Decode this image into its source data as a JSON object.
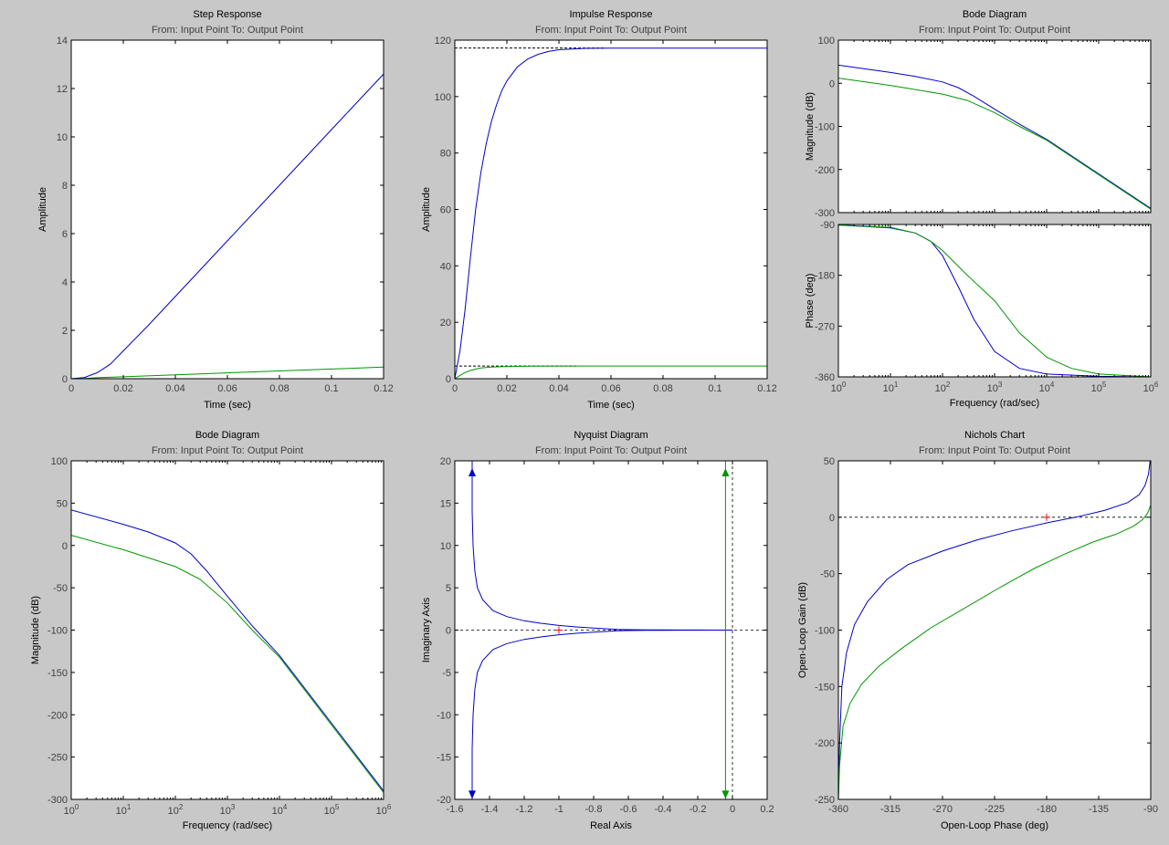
{
  "colors": {
    "background": "#c8c8c8",
    "axes_background": "#ffffff",
    "axes_frame": "#000000",
    "tick_label": "#404040",
    "series_blue": "#0000c8",
    "series_green": "#009600",
    "reference_line": "#000000",
    "critical_point": "#ff0000"
  },
  "chart_data": [
    {
      "id": "step",
      "type": "line",
      "title": "Step Response",
      "subtitle": "From: Input Point  To: Output Point",
      "xlabel": "Time (sec)",
      "ylabel": "Amplitude",
      "xlim": [
        0,
        0.12
      ],
      "ylim": [
        0,
        14
      ],
      "xticks": [
        0,
        0.02,
        0.04,
        0.06,
        0.08,
        0.1,
        0.12
      ],
      "xtick_labels": [
        "0",
        "0.02",
        "0.04",
        "0.06",
        "0.08",
        "0.1",
        "0.12"
      ],
      "yticks": [
        0,
        2,
        4,
        6,
        8,
        10,
        12,
        14
      ],
      "ytick_labels": [
        "0",
        "2",
        "4",
        "6",
        "8",
        "10",
        "12",
        "14"
      ],
      "series": [
        {
          "color": "blue",
          "x": [
            0,
            0.005,
            0.01,
            0.015,
            0.02,
            0.03,
            0.04,
            0.06,
            0.08,
            0.1,
            0.12
          ],
          "y": [
            0,
            0.05,
            0.25,
            0.6,
            1.15,
            2.25,
            3.4,
            5.7,
            8.0,
            10.3,
            12.6
          ]
        },
        {
          "color": "green",
          "x": [
            0,
            0.005,
            0.01,
            0.02,
            0.04,
            0.06,
            0.08,
            0.1,
            0.12
          ],
          "y": [
            0,
            0.01,
            0.04,
            0.08,
            0.16,
            0.24,
            0.32,
            0.4,
            0.48
          ]
        }
      ]
    },
    {
      "id": "impulse",
      "type": "line",
      "title": "Impulse Response",
      "subtitle": "From: Input Point  To: Output Point",
      "xlabel": "Time (sec)",
      "ylabel": "Amplitude",
      "xlim": [
        0,
        0.12
      ],
      "ylim": [
        0,
        120
      ],
      "xticks": [
        0,
        0.02,
        0.04,
        0.06,
        0.08,
        0.1,
        0.12
      ],
      "xtick_labels": [
        "0",
        "0.02",
        "0.04",
        "0.06",
        "0.08",
        "0.1",
        "0.12"
      ],
      "yticks": [
        0,
        20,
        40,
        60,
        80,
        100,
        120
      ],
      "ytick_labels": [
        "0",
        "20",
        "40",
        "60",
        "80",
        "100",
        "120"
      ],
      "series": [
        {
          "color": "blue",
          "x": [
            0,
            0.002,
            0.004,
            0.006,
            0.008,
            0.01,
            0.012,
            0.014,
            0.016,
            0.018,
            0.02,
            0.024,
            0.028,
            0.032,
            0.036,
            0.04,
            0.05,
            0.06,
            0.08,
            0.1,
            0.12
          ],
          "y": [
            0,
            10,
            25,
            43,
            60,
            73,
            83,
            91,
            97,
            102,
            105.5,
            110.5,
            113.3,
            115,
            116,
            116.6,
            117.1,
            117.2,
            117.2,
            117.2,
            117.2
          ]
        },
        {
          "color": "green",
          "x": [
            0,
            0.002,
            0.004,
            0.006,
            0.008,
            0.01,
            0.014,
            0.02,
            0.03,
            0.04,
            0.06,
            0.12
          ],
          "y": [
            0,
            1.2,
            2.2,
            2.9,
            3.4,
            3.8,
            4.15,
            4.35,
            4.45,
            4.48,
            4.5,
            4.5
          ]
        }
      ],
      "reference_lines": [
        {
          "y": 117.2,
          "x_end": 0.058
        },
        {
          "y": 4.5,
          "x_end": 0.047
        }
      ]
    },
    {
      "id": "bode_top_mag",
      "type": "line",
      "title": "Bode Diagram",
      "subtitle": "From: Input Point  To: Output Point",
      "ylabel": "Magnitude (dB)",
      "xscale": "log",
      "xlim": [
        1,
        1000000
      ],
      "ylim": [
        -300,
        100
      ],
      "yticks": [
        -300,
        -200,
        -100,
        0,
        100
      ],
      "ytick_labels": [
        "-300",
        "-200",
        "-100",
        "0",
        "100"
      ],
      "series": [
        {
          "color": "blue",
          "x": [
            1,
            10,
            30,
            100,
            200,
            400,
            1000,
            3000,
            10000,
            100000,
            1000000
          ],
          "y": [
            42,
            25,
            16,
            3,
            -10,
            -30,
            -60,
            -95,
            -130,
            -210,
            -290
          ]
        },
        {
          "color": "green",
          "x": [
            1,
            10,
            100,
            300,
            1000,
            3000,
            10000,
            100000,
            1000000
          ],
          "y": [
            12,
            -5,
            -25,
            -40,
            -68,
            -100,
            -132,
            -212,
            -292
          ]
        }
      ]
    },
    {
      "id": "bode_top_phase",
      "type": "line",
      "ylabel": "Phase (deg)",
      "xlabel": "Frequency  (rad/sec)",
      "xscale": "log",
      "xlim": [
        1,
        1000000
      ],
      "ylim": [
        -360,
        -90
      ],
      "xticks": [
        1,
        10,
        100,
        1000,
        10000,
        100000,
        1000000
      ],
      "xtick_labels": [
        "10^0",
        "10^1",
        "10^2",
        "10^3",
        "10^4",
        "10^5",
        "10^6"
      ],
      "yticks": [
        -360,
        -270,
        -180,
        -90
      ],
      "ytick_labels": [
        "-360",
        "-270",
        "-180",
        "-90"
      ],
      "series": [
        {
          "color": "blue",
          "x": [
            1,
            10,
            30,
            60,
            100,
            200,
            400,
            1000,
            3000,
            10000,
            100000,
            1000000
          ],
          "y": [
            -91,
            -96,
            -105,
            -120,
            -145,
            -200,
            -258,
            -315,
            -345,
            -355,
            -359,
            -360
          ]
        },
        {
          "color": "green",
          "x": [
            1,
            10,
            30,
            60,
            100,
            300,
            1000,
            3000,
            10000,
            30000,
            100000,
            1000000
          ],
          "y": [
            -91,
            -95,
            -105,
            -120,
            -136,
            -180,
            -225,
            -282,
            -325,
            -345,
            -355,
            -360
          ]
        }
      ]
    },
    {
      "id": "bode_bottom",
      "type": "line",
      "title": "Bode Diagram",
      "subtitle": "From: Input Point  To: Output Point",
      "xlabel": "Frequency  (rad/sec)",
      "ylabel": "Magnitude (dB)",
      "xscale": "log",
      "xlim": [
        1,
        1000000
      ],
      "ylim": [
        -300,
        100
      ],
      "xticks": [
        1,
        10,
        100,
        1000,
        10000,
        100000,
        1000000
      ],
      "xtick_labels": [
        "10^0",
        "10^1",
        "10^2",
        "10^3",
        "10^4",
        "10^5",
        "10^6"
      ],
      "yticks": [
        -300,
        -250,
        -200,
        -150,
        -100,
        -50,
        0,
        50,
        100
      ],
      "ytick_labels": [
        "-300",
        "-250",
        "-200",
        "-150",
        "-100",
        "-50",
        "0",
        "50",
        "100"
      ],
      "series": [
        {
          "color": "blue",
          "x": [
            1,
            10,
            30,
            100,
            200,
            400,
            1000,
            3000,
            10000,
            100000,
            1000000
          ],
          "y": [
            42,
            25,
            16,
            3,
            -10,
            -30,
            -60,
            -95,
            -130,
            -210,
            -290
          ]
        },
        {
          "color": "green",
          "x": [
            1,
            10,
            100,
            300,
            1000,
            3000,
            10000,
            100000,
            1000000
          ],
          "y": [
            12,
            -5,
            -25,
            -40,
            -68,
            -100,
            -132,
            -212,
            -292
          ]
        }
      ]
    },
    {
      "id": "nyquist",
      "type": "line",
      "title": "Nyquist Diagram",
      "subtitle": "From: Input Point  To: Output Point",
      "xlabel": "Real Axis",
      "ylabel": "Imaginary Axis",
      "xlim": [
        -1.6,
        0.2
      ],
      "ylim": [
        -20,
        20
      ],
      "xticks": [
        -1.6,
        -1.4,
        -1.2,
        -1,
        -0.8,
        -0.6,
        -0.4,
        -0.2,
        0,
        0.2
      ],
      "xtick_labels": [
        "-1.6",
        "-1.4",
        "-1.2",
        "-1",
        "-0.8",
        "-0.6",
        "-0.4",
        "-0.2",
        "0",
        "0.2"
      ],
      "yticks": [
        -20,
        -15,
        -10,
        -5,
        0,
        5,
        10,
        15,
        20
      ],
      "ytick_labels": [
        "-20",
        "-15",
        "-10",
        "-5",
        "0",
        "5",
        "10",
        "15",
        "20"
      ],
      "critical_point": [
        -1,
        0
      ],
      "series": [
        {
          "color": "blue",
          "x": [
            -1.5,
            -1.5,
            -1.495,
            -1.485,
            -1.47,
            -1.44,
            -1.38,
            -1.3,
            -1.2,
            -1.1,
            -1.0,
            -0.9,
            -0.8,
            -0.72,
            -0.66,
            -0.6,
            -0.5,
            -0.4,
            -0.3,
            -0.2,
            -0.1,
            -0.05,
            -0.02,
            0
          ],
          "y": [
            20,
            14,
            10,
            7,
            5,
            3.6,
            2.3,
            1.6,
            1.1,
            0.8,
            0.55,
            0.38,
            0.25,
            0.15,
            0.08,
            0.05,
            0.03,
            0.02,
            0.015,
            0.01,
            0.005,
            0.002,
            0.001,
            0
          ]
        },
        {
          "color": "blue",
          "x": [
            -1.5,
            -1.5,
            -1.495,
            -1.485,
            -1.47,
            -1.44,
            -1.38,
            -1.3,
            -1.2,
            -1.1,
            -1.0,
            -0.9,
            -0.8,
            -0.72,
            -0.66,
            -0.6,
            -0.5,
            -0.4,
            -0.3,
            -0.2,
            -0.1,
            -0.05,
            -0.02,
            0
          ],
          "y": [
            -20,
            -14,
            -10,
            -7,
            -5,
            -3.6,
            -2.3,
            -1.6,
            -1.1,
            -0.8,
            -0.55,
            -0.38,
            -0.25,
            -0.15,
            -0.08,
            -0.05,
            -0.03,
            -0.02,
            -0.015,
            -0.01,
            -0.005,
            -0.002,
            -0.001,
            0
          ]
        },
        {
          "color": "green",
          "x": [
            -0.04,
            -0.04
          ],
          "y": [
            20,
            -20
          ]
        }
      ],
      "markers": [
        {
          "color": "blue",
          "x": -1.5,
          "y": 18.6,
          "dir": "up"
        },
        {
          "color": "blue",
          "x": -1.5,
          "y": -19.4,
          "dir": "down"
        },
        {
          "color": "green",
          "x": -0.04,
          "y": 18.6,
          "dir": "up"
        },
        {
          "color": "green",
          "x": -0.04,
          "y": -19.4,
          "dir": "down"
        }
      ]
    },
    {
      "id": "nichols",
      "type": "line",
      "title": "Nichols Chart",
      "subtitle": "From: Input Point  To: Output Point",
      "xlabel": "Open-Loop Phase (deg)",
      "ylabel": "Open-Loop Gain (dB)",
      "xlim": [
        -360,
        -90
      ],
      "ylim": [
        -250,
        50
      ],
      "xticks": [
        -360,
        -315,
        -270,
        -225,
        -180,
        -135,
        -90
      ],
      "xtick_labels": [
        "-360",
        "-315",
        "-270",
        "-225",
        "-180",
        "-135",
        "-90"
      ],
      "yticks": [
        -250,
        -200,
        -150,
        -100,
        -50,
        0,
        50
      ],
      "ytick_labels": [
        "-250",
        "-200",
        "-150",
        "-100",
        "-50",
        "0",
        "50"
      ],
      "critical_point": [
        -180,
        0
      ],
      "series": [
        {
          "color": "blue",
          "x": [
            -360,
            -359,
            -357,
            -353,
            -346,
            -335,
            -318,
            -300,
            -270,
            -240,
            -210,
            -180,
            -155,
            -130,
            -110,
            -100,
            -95,
            -92,
            -91,
            -90.5
          ],
          "y": [
            -250,
            -200,
            -150,
            -120,
            -95,
            -75,
            -55,
            -42,
            -30,
            -20,
            -12,
            -5,
            0,
            6,
            13,
            20,
            28,
            38,
            46,
            50
          ]
        },
        {
          "color": "green",
          "x": [
            -360,
            -359,
            -356,
            -350,
            -340,
            -325,
            -305,
            -280,
            -250,
            -220,
            -190,
            -165,
            -140,
            -120,
            -105,
            -97,
            -93,
            -91,
            -90.5
          ],
          "y": [
            -250,
            -220,
            -185,
            -165,
            -148,
            -132,
            -116,
            -98,
            -80,
            -62,
            -45,
            -33,
            -22,
            -15,
            -8,
            -2,
            3,
            8,
            10
          ]
        }
      ]
    }
  ]
}
